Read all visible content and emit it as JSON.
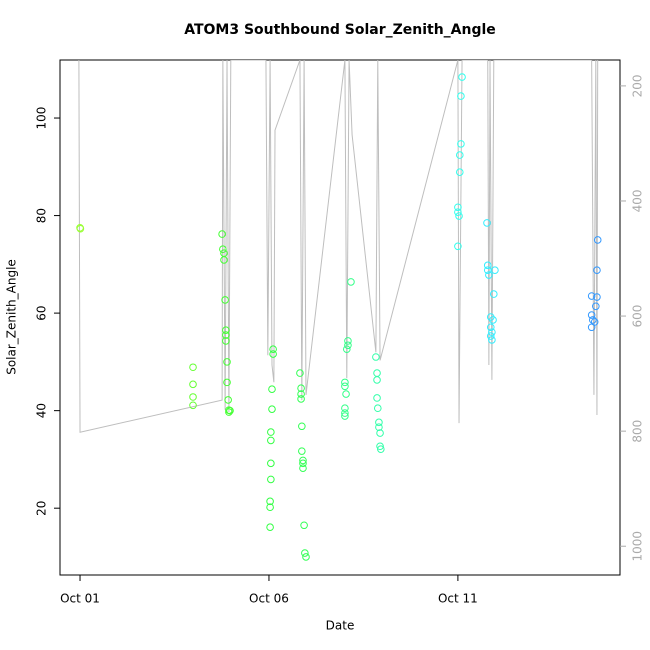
{
  "chart_data": {
    "type": "scatter",
    "title": "ATOM3 Southbound Solar_Zenith_Angle",
    "x_label": "Date",
    "y_label": "Solar_Zenith_Angle",
    "xlim": [
      -0.53,
      14.29
    ],
    "ylim": [
      6.3,
      111.9
    ],
    "y2lim": [
      1050,
      155
    ],
    "xticks": [
      {
        "value": 0,
        "label": "Oct 01"
      },
      {
        "value": 5,
        "label": "Oct 06"
      },
      {
        "value": 10,
        "label": "Oct 11"
      }
    ],
    "yticks": [
      20,
      40,
      60,
      80,
      100
    ],
    "y2ticks": [
      200,
      400,
      600,
      800,
      1000
    ],
    "series": [
      {
        "color": "#99ff33",
        "x": [
          0,
          0.01
        ],
        "values": [
          77.5,
          77.3
        ]
      },
      {
        "color": "#66ff33",
        "x": [
          2.99,
          2.99,
          2.99,
          2.99
        ],
        "values": [
          48.9,
          45.4,
          42.8,
          41.1
        ]
      },
      {
        "color": "#44ff33",
        "x": [
          3.76,
          3.78,
          3.81,
          3.81,
          3.84,
          3.86,
          3.86,
          3.86,
          3.89,
          3.89,
          3.92,
          3.94,
          3.94,
          3.97
        ],
        "values": [
          76.2,
          73.1,
          72.3,
          70.9,
          62.7,
          56.5,
          55.5,
          54.3,
          50.0,
          45.8,
          42.2,
          40.1,
          39.7,
          40.0
        ]
      },
      {
        "color": "#33ff44",
        "x": [
          5.11,
          5.11,
          5.08,
          5.08,
          5.05,
          5.05,
          5.05,
          5.05,
          5.03,
          5.03,
          5.03
        ],
        "values": [
          52.6,
          51.6,
          44.4,
          40.3,
          35.6,
          33.9,
          29.2,
          25.9,
          21.4,
          20.2,
          16.1
        ]
      },
      {
        "color": "#33ff55",
        "x": [
          5.82,
          5.85,
          5.85,
          5.85,
          5.87,
          5.87,
          5.9,
          5.9,
          5.9,
          5.93,
          5.95,
          5.98
        ],
        "values": [
          47.7,
          44.6,
          43.4,
          42.4,
          36.8,
          31.7,
          29.8,
          29.2,
          28.2,
          16.5,
          10.8,
          10.0
        ]
      },
      {
        "color": "#33ff88",
        "x": [
          7.17,
          7.09,
          7.09,
          7.06,
          7.01,
          7.01,
          7.04,
          7.01,
          7.01,
          7.01
        ],
        "values": [
          66.4,
          54.3,
          53.4,
          52.6,
          45.8,
          45.0,
          43.4,
          40.5,
          39.5,
          38.9
        ]
      },
      {
        "color": "#33ffaa",
        "x": [
          7.83,
          7.86,
          7.86,
          7.86,
          7.88,
          7.91,
          7.91,
          7.94,
          7.94,
          7.96
        ],
        "values": [
          51.0,
          47.7,
          46.3,
          42.6,
          40.5,
          37.6,
          36.6,
          35.4,
          32.7,
          32.1
        ]
      },
      {
        "color": "#33ffee",
        "x": [
          10.11,
          10.08,
          10.08,
          10.05,
          10.05,
          10,
          10,
          10.03,
          10
        ],
        "values": [
          108.4,
          104.5,
          94.7,
          92.4,
          88.9,
          81.7,
          80.7,
          79.9,
          73.7
        ]
      },
      {
        "color": "#33eeff",
        "x": [
          10.77,
          10.79,
          10.79,
          10.82,
          10.98,
          10.95,
          10.87,
          10.93,
          10.87,
          10.9,
          10.87,
          10.9
        ],
        "values": [
          78.5,
          69.8,
          68.8,
          67.8,
          68.8,
          63.9,
          59.2,
          58.6,
          57.1,
          56.1,
          55.3,
          54.5
        ]
      },
      {
        "color": "#3399ff",
        "x": [
          13.7,
          13.68,
          13.54,
          13.68,
          13.65,
          13.54,
          13.57,
          13.62,
          13.54
        ],
        "values": [
          75.0,
          68.8,
          63.5,
          63.3,
          61.4,
          59.6,
          58.6,
          58.2,
          57.1
        ]
      },
      {
        "type": "line",
        "axis": "y2",
        "color": "#bebebe",
        "x": [
          -0.03,
          0,
          3.76,
          3.78,
          3.84,
          3.89,
          3.94,
          3.99,
          4.92,
          4.97,
          5.03,
          5.08,
          5.13,
          5.16,
          5.82,
          5.87,
          5.93,
          5.98,
          7.01,
          7.06,
          7.12,
          7.2,
          7.83,
          7.88,
          7.94,
          10,
          10.03,
          10.05,
          10.11,
          10.79,
          10.82,
          10.85,
          10.9,
          10.95,
          13.54,
          13.6,
          13.65,
          13.68,
          13.7
        ],
        "values": [
          155,
          802,
          746,
          155,
          763,
          155,
          767,
          155,
          155,
          668,
          155,
          685,
          715,
          277,
          155,
          746,
          155,
          737,
          155,
          708,
          155,
          285,
          663,
          155,
          677,
          155,
          786,
          624,
          155,
          155,
          685,
          155,
          711,
          155,
          155,
          737,
          155,
          772,
          155
        ]
      }
    ]
  }
}
